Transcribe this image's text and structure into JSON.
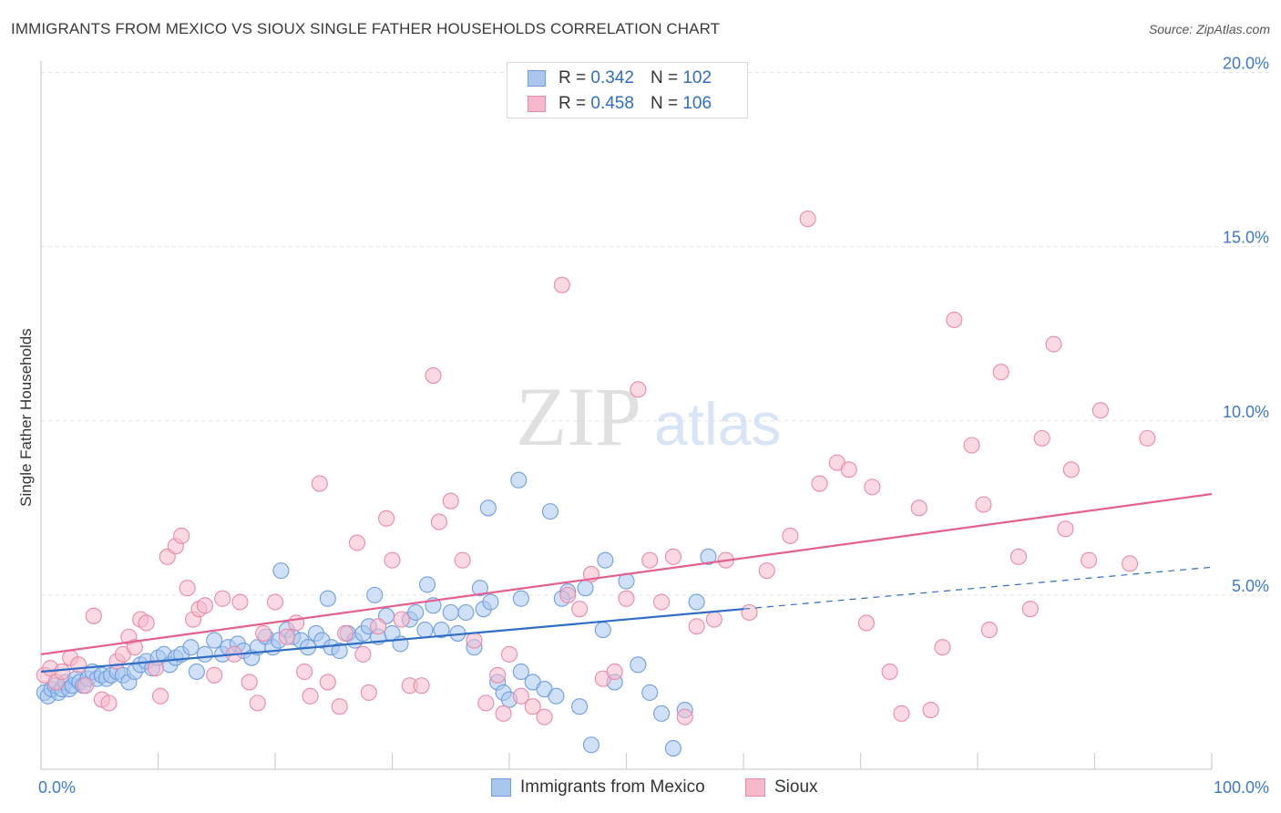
{
  "title": "IMMIGRANTS FROM MEXICO VS SIOUX SINGLE FATHER HOUSEHOLDS CORRELATION CHART",
  "source": "Source: ZipAtlas.com",
  "watermark": {
    "zip": "ZIP",
    "atlas": "atlas"
  },
  "legend": {
    "rows": [
      {
        "r_label": "R =",
        "r_value": "0.342",
        "n_label": "N =",
        "n_value": "102",
        "color": "#a9c6ef",
        "border": "#6f9fe0"
      },
      {
        "r_label": "R =",
        "r_value": "0.458",
        "n_label": "N =",
        "n_value": "106",
        "color": "#f6b9cc",
        "border": "#e98aa9"
      }
    ]
  },
  "bottom_legend": [
    {
      "label": "Immigrants from Mexico",
      "color": "#a9c6ef",
      "border": "#6f9fe0"
    },
    {
      "label": "Sioux",
      "color": "#f6b9cc",
      "border": "#e98aa9"
    }
  ],
  "chart_data": {
    "type": "scatter",
    "title": "IMMIGRANTS FROM MEXICO VS SIOUX SINGLE FATHER HOUSEHOLDS CORRELATION CHART",
    "xlabel": "",
    "ylabel": "Single Father Households",
    "xlim": [
      0,
      100
    ],
    "ylim": [
      0,
      20
    ],
    "x_tick_labels": [
      {
        "value": 0,
        "label": "0.0%"
      },
      {
        "value": 100,
        "label": "100.0%"
      }
    ],
    "y_ticks": [
      {
        "value": 5,
        "label": "5.0%"
      },
      {
        "value": 10,
        "label": "10.0%"
      },
      {
        "value": 15,
        "label": "15.0%"
      },
      {
        "value": 20,
        "label": "20.0%"
      }
    ],
    "grid": true,
    "series": [
      {
        "name": "Immigrants from Mexico",
        "color": "#a9c6ef",
        "stroke": "#6f9fe0",
        "trend_color": "#2f6dc6",
        "trend": {
          "x0": 0,
          "y0": 2.8,
          "x1": 60,
          "y1": 4.6,
          "dash_to_x": 100,
          "dash_to_y": 5.8
        },
        "points": [
          [
            0.3,
            2.2
          ],
          [
            0.6,
            2.1
          ],
          [
            0.9,
            2.3
          ],
          [
            1.2,
            2.4
          ],
          [
            1.5,
            2.2
          ],
          [
            1.8,
            2.3
          ],
          [
            2.1,
            2.5
          ],
          [
            2.4,
            2.3
          ],
          [
            2.7,
            2.4
          ],
          [
            3.0,
            2.6
          ],
          [
            3.3,
            2.5
          ],
          [
            3.6,
            2.4
          ],
          [
            4.0,
            2.6
          ],
          [
            4.4,
            2.8
          ],
          [
            4.8,
            2.6
          ],
          [
            5.2,
            2.7
          ],
          [
            5.6,
            2.6
          ],
          [
            6.0,
            2.7
          ],
          [
            6.5,
            2.8
          ],
          [
            7.0,
            2.7
          ],
          [
            7.5,
            2.5
          ],
          [
            8.0,
            2.8
          ],
          [
            8.5,
            3.0
          ],
          [
            9.0,
            3.1
          ],
          [
            9.5,
            2.9
          ],
          [
            10.0,
            3.2
          ],
          [
            10.5,
            3.3
          ],
          [
            11.0,
            3.0
          ],
          [
            11.5,
            3.2
          ],
          [
            12.0,
            3.3
          ],
          [
            12.8,
            3.5
          ],
          [
            13.3,
            2.8
          ],
          [
            14.0,
            3.3
          ],
          [
            14.8,
            3.7
          ],
          [
            15.5,
            3.3
          ],
          [
            16.0,
            3.5
          ],
          [
            16.8,
            3.6
          ],
          [
            17.3,
            3.4
          ],
          [
            18.0,
            3.2
          ],
          [
            18.5,
            3.5
          ],
          [
            19.2,
            3.8
          ],
          [
            19.8,
            3.5
          ],
          [
            20.3,
            3.7
          ],
          [
            21.0,
            4.0
          ],
          [
            21.5,
            3.8
          ],
          [
            22.2,
            3.7
          ],
          [
            22.8,
            3.5
          ],
          [
            23.5,
            3.9
          ],
          [
            24.0,
            3.7
          ],
          [
            24.8,
            3.5
          ],
          [
            25.5,
            3.4
          ],
          [
            26.2,
            3.9
          ],
          [
            26.8,
            3.7
          ],
          [
            27.5,
            3.9
          ],
          [
            28.0,
            4.1
          ],
          [
            28.8,
            3.8
          ],
          [
            29.5,
            4.4
          ],
          [
            30.0,
            3.9
          ],
          [
            30.7,
            3.6
          ],
          [
            31.5,
            4.3
          ],
          [
            32.0,
            4.5
          ],
          [
            32.8,
            4.0
          ],
          [
            33.5,
            4.7
          ],
          [
            34.2,
            4.0
          ],
          [
            35.0,
            4.5
          ],
          [
            35.6,
            3.9
          ],
          [
            36.3,
            4.5
          ],
          [
            37.0,
            3.5
          ],
          [
            37.8,
            4.6
          ],
          [
            38.4,
            4.8
          ],
          [
            39.0,
            2.5
          ],
          [
            39.5,
            2.2
          ],
          [
            40.0,
            2.0
          ],
          [
            41.0,
            2.8
          ],
          [
            42.0,
            2.5
          ],
          [
            43.0,
            2.3
          ],
          [
            44.0,
            2.1
          ],
          [
            45.0,
            5.1
          ],
          [
            46.0,
            1.8
          ],
          [
            47.0,
            0.7
          ],
          [
            48.0,
            4.0
          ],
          [
            49.0,
            2.5
          ],
          [
            50.0,
            5.4
          ],
          [
            51.0,
            3.0
          ],
          [
            52.0,
            2.2
          ],
          [
            53.0,
            1.6
          ],
          [
            54.0,
            0.6
          ],
          [
            55.0,
            1.7
          ],
          [
            56.0,
            4.8
          ],
          [
            57.0,
            6.1
          ],
          [
            20.5,
            5.7
          ],
          [
            24.5,
            4.9
          ],
          [
            28.5,
            5.0
          ],
          [
            33.0,
            5.3
          ],
          [
            37.5,
            5.2
          ],
          [
            41.0,
            4.9
          ],
          [
            44.5,
            4.9
          ],
          [
            46.5,
            5.2
          ],
          [
            48.2,
            6.0
          ],
          [
            38.2,
            7.5
          ],
          [
            40.8,
            8.3
          ],
          [
            43.5,
            7.4
          ]
        ]
      },
      {
        "name": "Sioux",
        "color": "#f6b9cc",
        "stroke": "#e98aa9",
        "trend_color": "#e4608f",
        "trend": {
          "x0": 0,
          "y0": 3.3,
          "x1": 100,
          "y1": 7.9
        },
        "points": [
          [
            0.3,
            2.7
          ],
          [
            0.8,
            2.9
          ],
          [
            1.3,
            2.5
          ],
          [
            1.8,
            2.8
          ],
          [
            2.5,
            3.2
          ],
          [
            3.2,
            3.0
          ],
          [
            3.8,
            2.4
          ],
          [
            4.5,
            4.4
          ],
          [
            5.2,
            2.0
          ],
          [
            5.8,
            1.9
          ],
          [
            6.5,
            3.1
          ],
          [
            7.0,
            3.3
          ],
          [
            7.5,
            3.8
          ],
          [
            8.0,
            3.5
          ],
          [
            8.5,
            4.3
          ],
          [
            9.0,
            4.2
          ],
          [
            9.8,
            2.9
          ],
          [
            10.2,
            2.1
          ],
          [
            10.8,
            6.1
          ],
          [
            11.5,
            6.4
          ],
          [
            12.0,
            6.7
          ],
          [
            12.5,
            5.2
          ],
          [
            13.0,
            4.3
          ],
          [
            13.5,
            4.6
          ],
          [
            14.0,
            4.7
          ],
          [
            14.8,
            2.7
          ],
          [
            15.5,
            4.9
          ],
          [
            16.5,
            3.3
          ],
          [
            17.0,
            4.8
          ],
          [
            17.8,
            2.5
          ],
          [
            18.5,
            1.9
          ],
          [
            19.0,
            3.9
          ],
          [
            20.0,
            4.8
          ],
          [
            21.0,
            3.8
          ],
          [
            21.8,
            4.2
          ],
          [
            22.5,
            2.8
          ],
          [
            23.0,
            2.1
          ],
          [
            23.8,
            8.2
          ],
          [
            24.5,
            2.5
          ],
          [
            25.5,
            1.8
          ],
          [
            26.0,
            3.9
          ],
          [
            27.0,
            6.5
          ],
          [
            27.5,
            3.3
          ],
          [
            28.0,
            2.2
          ],
          [
            28.8,
            4.1
          ],
          [
            29.5,
            7.2
          ],
          [
            30.0,
            6.0
          ],
          [
            30.8,
            4.3
          ],
          [
            31.5,
            2.4
          ],
          [
            32.5,
            2.4
          ],
          [
            33.5,
            11.3
          ],
          [
            34.0,
            7.1
          ],
          [
            35.0,
            7.7
          ],
          [
            36.0,
            6.0
          ],
          [
            37.0,
            3.7
          ],
          [
            38.0,
            1.9
          ],
          [
            39.0,
            2.7
          ],
          [
            39.5,
            1.6
          ],
          [
            40.0,
            3.3
          ],
          [
            41.0,
            2.1
          ],
          [
            42.0,
            1.8
          ],
          [
            43.0,
            1.5
          ],
          [
            44.5,
            13.9
          ],
          [
            45.0,
            5.0
          ],
          [
            46.0,
            4.6
          ],
          [
            47.0,
            5.6
          ],
          [
            48.0,
            2.6
          ],
          [
            49.0,
            2.8
          ],
          [
            50.0,
            4.9
          ],
          [
            51.0,
            10.9
          ],
          [
            52.0,
            6.0
          ],
          [
            53.0,
            4.8
          ],
          [
            54.0,
            6.1
          ],
          [
            55.0,
            1.5
          ],
          [
            56.0,
            4.1
          ],
          [
            57.5,
            4.3
          ],
          [
            58.5,
            6.0
          ],
          [
            60.5,
            4.5
          ],
          [
            62.0,
            5.7
          ],
          [
            64.0,
            6.7
          ],
          [
            65.5,
            15.8
          ],
          [
            66.5,
            8.2
          ],
          [
            68.0,
            8.8
          ],
          [
            69.0,
            8.6
          ],
          [
            70.5,
            4.2
          ],
          [
            71.0,
            8.1
          ],
          [
            72.5,
            2.8
          ],
          [
            73.5,
            1.6
          ],
          [
            75.0,
            7.5
          ],
          [
            76.0,
            1.7
          ],
          [
            77.0,
            3.5
          ],
          [
            78.0,
            12.9
          ],
          [
            79.5,
            9.3
          ],
          [
            80.5,
            7.6
          ],
          [
            81.0,
            4.0
          ],
          [
            82.0,
            11.4
          ],
          [
            83.5,
            6.1
          ],
          [
            84.5,
            4.6
          ],
          [
            85.5,
            9.5
          ],
          [
            86.5,
            12.2
          ],
          [
            87.5,
            6.9
          ],
          [
            88.0,
            8.6
          ],
          [
            89.5,
            6.0
          ],
          [
            90.5,
            10.3
          ],
          [
            93.0,
            5.9
          ],
          [
            94.5,
            9.5
          ]
        ]
      }
    ]
  }
}
